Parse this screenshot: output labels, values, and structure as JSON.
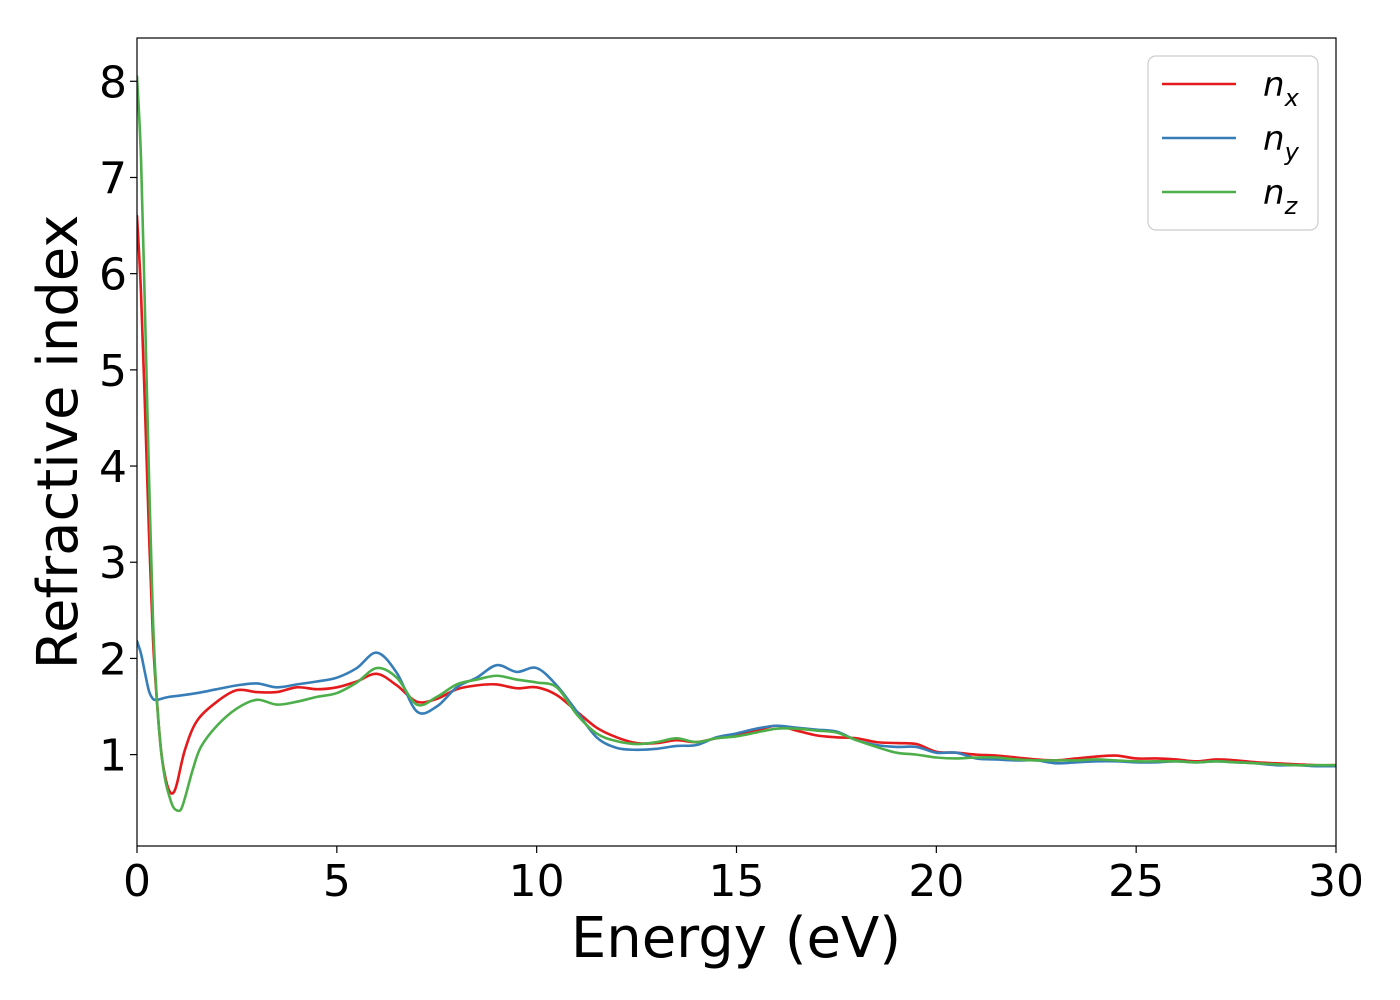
{
  "chart_data": {
    "type": "line",
    "xlabel": "Energy (eV)",
    "ylabel": "Refractive index",
    "xlim": [
      0,
      30
    ],
    "ylim": [
      0.05,
      8.45
    ],
    "xticks": [
      0,
      5,
      10,
      15,
      20,
      25,
      30
    ],
    "yticks": [
      1,
      2,
      3,
      4,
      5,
      6,
      7,
      8
    ],
    "grid": false,
    "legend_position": "top-right",
    "series": [
      {
        "name": "n",
        "sub": "x",
        "color": "#e41a1c",
        "x": [
          0,
          0.1,
          0.2,
          0.3,
          0.4,
          0.5,
          0.6,
          0.7,
          0.8,
          0.9,
          1.0,
          1.2,
          1.5,
          2.0,
          2.5,
          3.0,
          3.5,
          4.0,
          4.5,
          5.0,
          5.5,
          6.0,
          6.5,
          7.0,
          7.5,
          8.0,
          8.5,
          9.0,
          9.5,
          10.0,
          10.5,
          11.0,
          11.5,
          12.0,
          12.5,
          13.0,
          13.5,
          14.0,
          14.5,
          15.0,
          15.5,
          16.0,
          16.5,
          17.0,
          17.5,
          18.0,
          18.5,
          19.0,
          19.5,
          20.0,
          20.5,
          21.0,
          21.5,
          22.0,
          22.5,
          23.0,
          23.5,
          24.0,
          24.5,
          25.0,
          25.5,
          26.0,
          26.5,
          27.0,
          27.5,
          28.0,
          28.5,
          29.0,
          29.5,
          30.0
        ],
        "y": [
          6.6,
          5.8,
          4.6,
          3.3,
          2.2,
          1.55,
          1.05,
          0.78,
          0.63,
          0.6,
          0.7,
          1.05,
          1.35,
          1.55,
          1.67,
          1.65,
          1.65,
          1.7,
          1.68,
          1.7,
          1.76,
          1.84,
          1.72,
          1.55,
          1.58,
          1.68,
          1.72,
          1.73,
          1.69,
          1.7,
          1.62,
          1.45,
          1.28,
          1.18,
          1.12,
          1.12,
          1.15,
          1.13,
          1.17,
          1.2,
          1.25,
          1.3,
          1.25,
          1.2,
          1.18,
          1.17,
          1.13,
          1.12,
          1.11,
          1.03,
          1.02,
          1.0,
          0.99,
          0.97,
          0.95,
          0.94,
          0.96,
          0.98,
          0.99,
          0.96,
          0.96,
          0.95,
          0.93,
          0.95,
          0.94,
          0.92,
          0.91,
          0.9,
          0.89,
          0.89
        ]
      },
      {
        "name": "n",
        "sub": "y",
        "color": "#377eb8",
        "x": [
          0,
          0.1,
          0.2,
          0.3,
          0.4,
          0.5,
          0.6,
          0.8,
          1.0,
          1.5,
          2.0,
          2.5,
          3.0,
          3.5,
          4.0,
          4.5,
          5.0,
          5.5,
          6.0,
          6.5,
          7.0,
          7.5,
          8.0,
          8.5,
          9.0,
          9.5,
          10.0,
          10.5,
          11.0,
          11.5,
          12.0,
          12.5,
          13.0,
          13.5,
          14.0,
          14.5,
          15.0,
          15.5,
          16.0,
          16.5,
          17.0,
          17.5,
          18.0,
          18.5,
          19.0,
          19.5,
          20.0,
          20.5,
          21.0,
          21.5,
          22.0,
          22.5,
          23.0,
          23.5,
          24.0,
          24.5,
          25.0,
          25.5,
          26.0,
          26.5,
          27.0,
          27.5,
          28.0,
          28.5,
          29.0,
          29.5,
          30.0
        ],
        "y": [
          2.18,
          2.05,
          1.85,
          1.66,
          1.58,
          1.57,
          1.58,
          1.6,
          1.61,
          1.64,
          1.68,
          1.72,
          1.74,
          1.7,
          1.73,
          1.76,
          1.8,
          1.9,
          2.06,
          1.85,
          1.45,
          1.5,
          1.7,
          1.8,
          1.93,
          1.86,
          1.9,
          1.72,
          1.45,
          1.18,
          1.07,
          1.05,
          1.06,
          1.09,
          1.1,
          1.18,
          1.22,
          1.27,
          1.3,
          1.28,
          1.26,
          1.24,
          1.15,
          1.1,
          1.08,
          1.08,
          1.02,
          1.02,
          0.96,
          0.95,
          0.94,
          0.94,
          0.91,
          0.92,
          0.93,
          0.93,
          0.92,
          0.92,
          0.93,
          0.92,
          0.93,
          0.92,
          0.91,
          0.89,
          0.89,
          0.88,
          0.88
        ]
      },
      {
        "name": "n",
        "sub": "z",
        "color": "#4daf4a",
        "x": [
          0,
          0.1,
          0.2,
          0.3,
          0.4,
          0.5,
          0.6,
          0.7,
          0.8,
          0.9,
          1.0,
          1.1,
          1.2,
          1.4,
          1.6,
          2.0,
          2.5,
          3.0,
          3.5,
          4.0,
          4.5,
          5.0,
          5.5,
          6.0,
          6.5,
          7.0,
          7.5,
          8.0,
          8.5,
          9.0,
          9.5,
          10.0,
          10.5,
          11.0,
          11.5,
          12.0,
          12.5,
          13.0,
          13.5,
          14.0,
          14.5,
          15.0,
          15.5,
          16.0,
          16.5,
          17.0,
          17.5,
          18.0,
          18.5,
          19.0,
          19.5,
          20.0,
          20.5,
          21.0,
          21.5,
          22.0,
          22.5,
          23.0,
          23.5,
          24.0,
          24.5,
          25.0,
          25.5,
          26.0,
          26.5,
          27.0,
          27.5,
          28.0,
          28.5,
          29.0,
          29.5,
          30.0
        ],
        "y": [
          8.05,
          7.2,
          5.6,
          3.9,
          2.4,
          1.55,
          1.05,
          0.75,
          0.58,
          0.46,
          0.42,
          0.43,
          0.55,
          0.85,
          1.08,
          1.3,
          1.48,
          1.57,
          1.52,
          1.55,
          1.6,
          1.64,
          1.75,
          1.9,
          1.8,
          1.52,
          1.6,
          1.73,
          1.78,
          1.82,
          1.78,
          1.75,
          1.7,
          1.42,
          1.22,
          1.14,
          1.11,
          1.13,
          1.17,
          1.13,
          1.17,
          1.19,
          1.23,
          1.27,
          1.27,
          1.25,
          1.23,
          1.15,
          1.08,
          1.02,
          1.0,
          0.97,
          0.96,
          0.97,
          0.97,
          0.95,
          0.94,
          0.94,
          0.94,
          0.95,
          0.94,
          0.93,
          0.93,
          0.93,
          0.92,
          0.93,
          0.92,
          0.91,
          0.9,
          0.89,
          0.89,
          0.89
        ]
      }
    ]
  }
}
